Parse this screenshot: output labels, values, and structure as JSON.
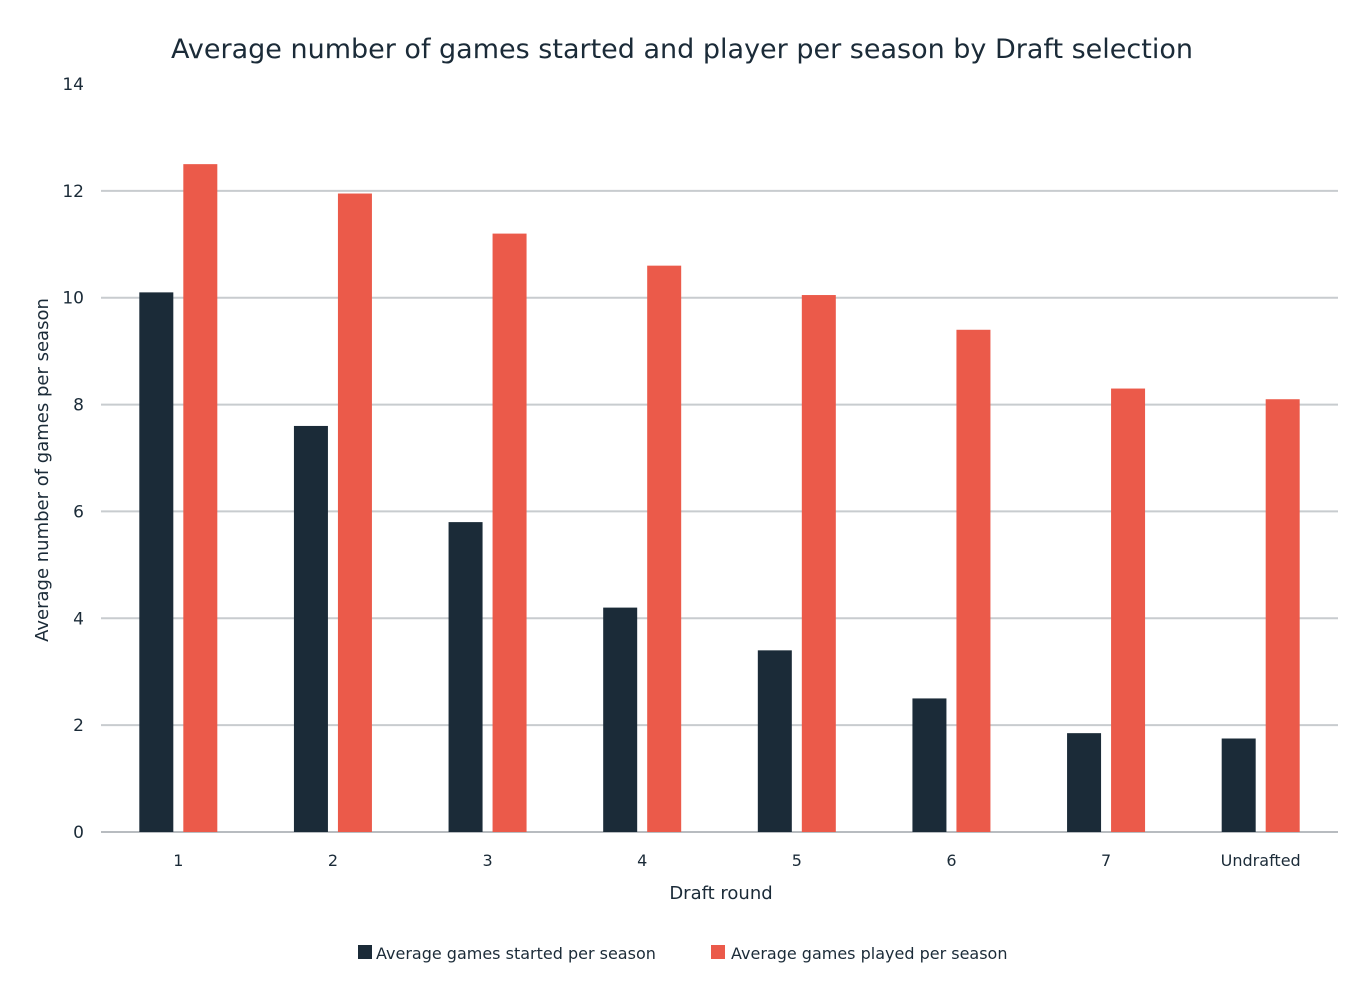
{
  "chart_data": {
    "type": "bar",
    "title": "Average number of games started and player per season by Draft selection",
    "xlabel": "Draft round",
    "ylabel": "Average number of games per season",
    "ylim": [
      0,
      14
    ],
    "yticks": [
      0,
      2,
      4,
      6,
      8,
      10,
      12,
      14
    ],
    "grid": true,
    "legend": "bottom",
    "categories": [
      "1",
      "2",
      "3",
      "4",
      "5",
      "6",
      "7",
      "Undrafted"
    ],
    "series": [
      {
        "name": "Average games started per season",
        "color": "#1b2b38",
        "values": [
          10.1,
          7.6,
          5.8,
          4.2,
          3.4,
          2.5,
          1.85,
          1.75
        ]
      },
      {
        "name": "Average games played per season",
        "color": "#eb5a4a",
        "values": [
          12.5,
          11.95,
          11.2,
          10.6,
          10.05,
          9.4,
          8.3,
          8.1
        ]
      }
    ]
  }
}
